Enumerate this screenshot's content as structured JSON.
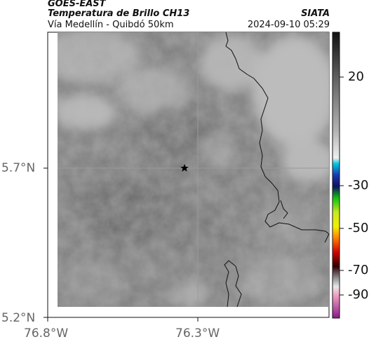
{
  "header": {
    "satellite": "GOES-EAST",
    "product": "Temperatura de Brillo CH13",
    "route": "Vía Medellín - Quibdó 50km",
    "source": "SIATA",
    "datetime": "2024-09-10 05:29"
  },
  "axes": {
    "lat_ticks": [
      "5.7°N",
      "5.2°N"
    ],
    "lon_ticks": [
      "76.8°W",
      "76.3°W"
    ]
  },
  "colorbar": {
    "labels": [
      "20",
      "-30",
      "-50",
      "-70",
      "-90"
    ],
    "colors": {
      "warm_top": "#111111",
      "gray_mid": "#8a8a8a",
      "light": "#d9d9d9",
      "cyan": "#00b8d4",
      "blue": "#0a2a9a",
      "green": "#10c010",
      "yellow": "#f0f000",
      "orange": "#ff6a00",
      "red": "#d00000",
      "dark": "#200000",
      "pink": "#f0a0c0",
      "purple": "#8a1a8a"
    }
  },
  "marker": {
    "icon": "star-icon"
  }
}
